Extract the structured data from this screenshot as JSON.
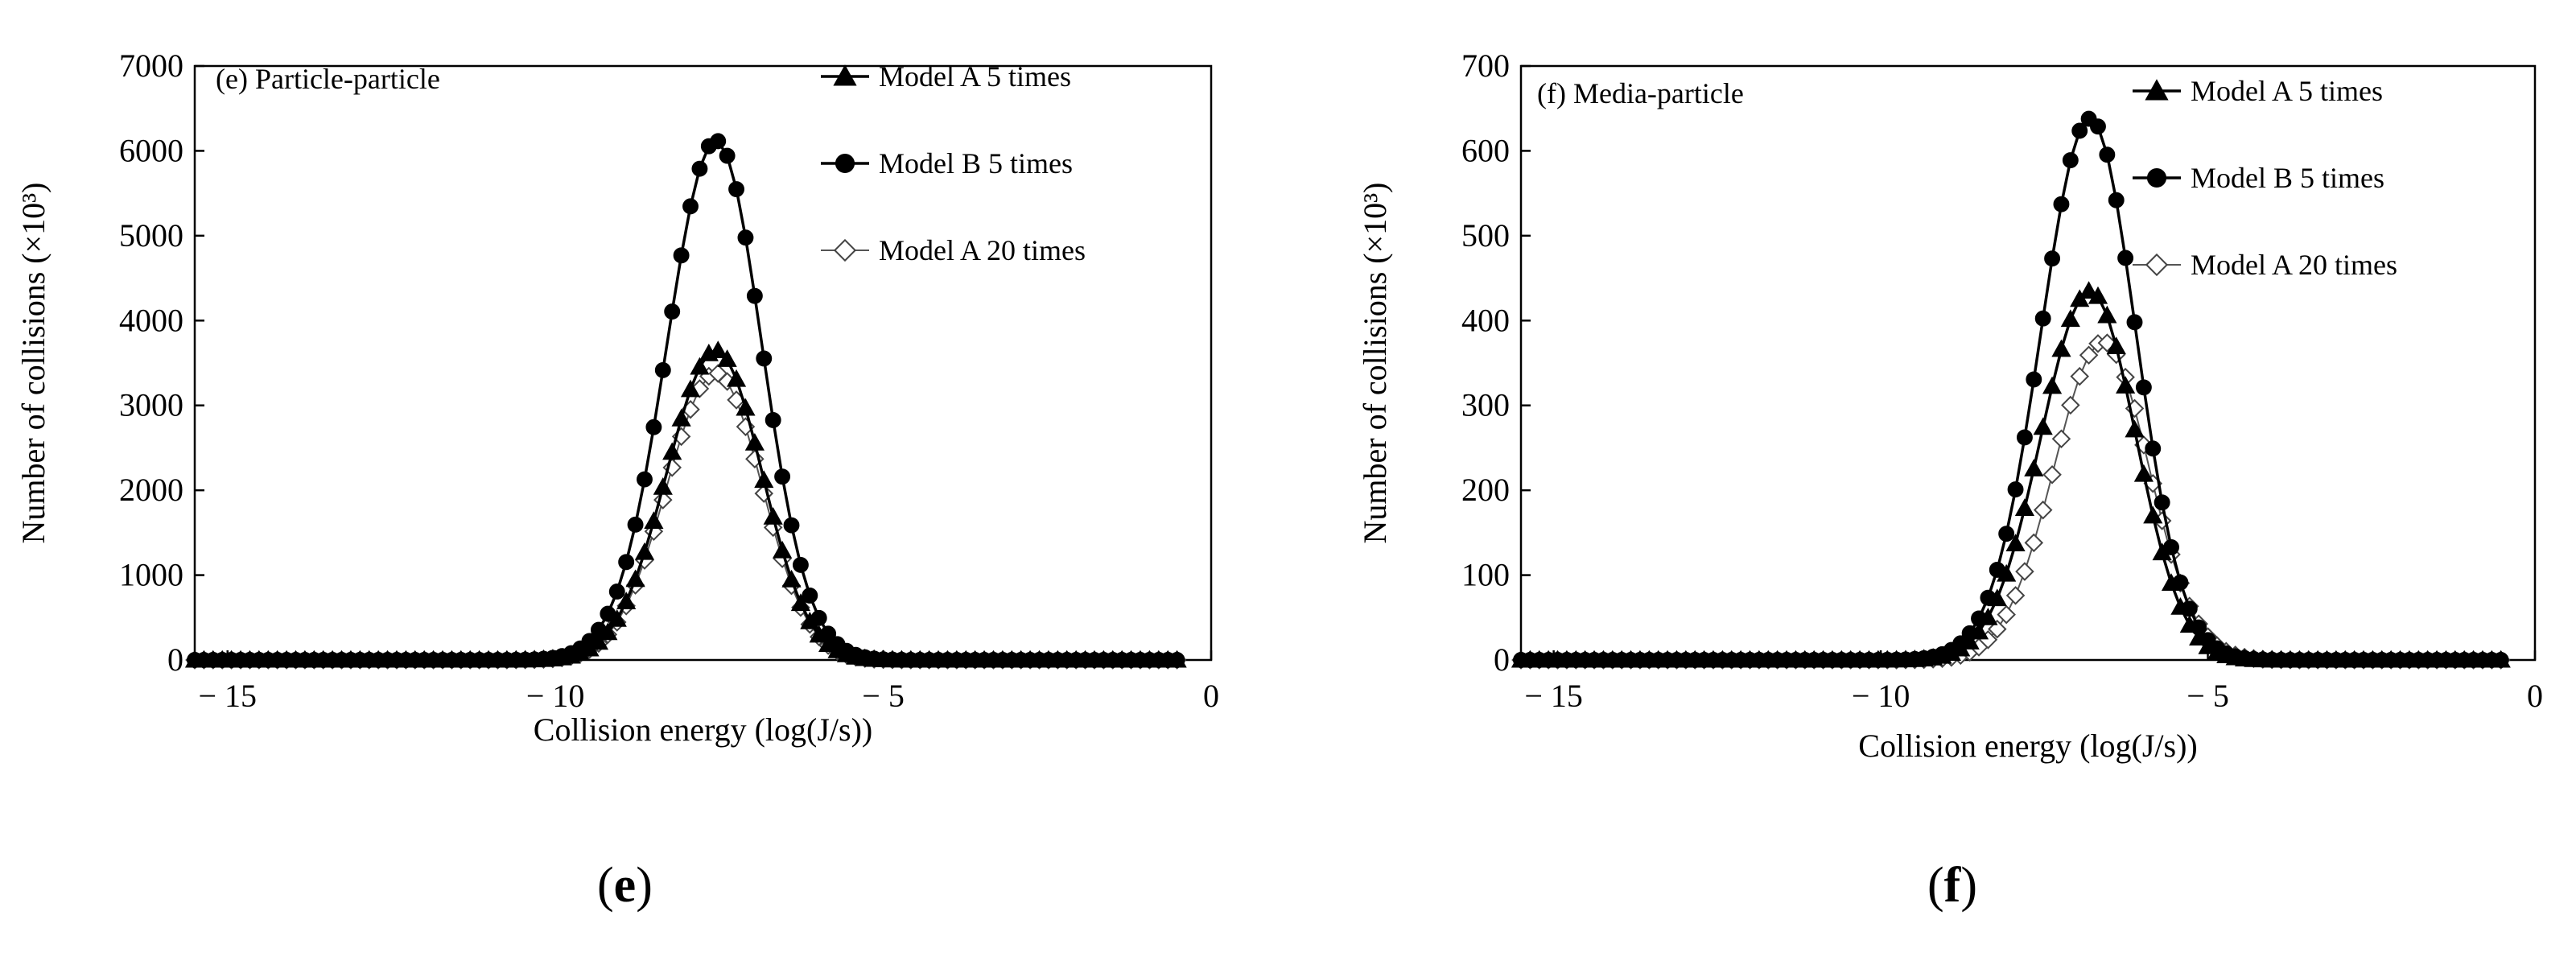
{
  "chart_data": [
    {
      "type": "line",
      "panel_label": "(e) Particle-particle",
      "caption": {
        "open": "(",
        "letter": "e",
        "close": ")"
      },
      "xlabel": "Collision energy (log(J/s))",
      "ylabel": "Number of collisions (×10³)",
      "xlim": [
        -15.5,
        0
      ],
      "ylim": [
        0,
        7000
      ],
      "xticks": [
        -15,
        -10,
        -5,
        0
      ],
      "xtick_labels": [
        "− 15",
        "− 10",
        "− 5",
        "0"
      ],
      "yticks": [
        0,
        1000,
        2000,
        3000,
        4000,
        5000,
        6000,
        7000
      ],
      "ytick_labels": [
        "0",
        "1000",
        "2000",
        "3000",
        "4000",
        "5000",
        "6000",
        "7000"
      ],
      "grid": false,
      "legend_position": "top-right",
      "series": [
        {
          "name": "Model A  5 times",
          "marker": "triangle",
          "color": "#000000",
          "peak_x": -7.55,
          "peak_y": 3650,
          "sigma_left": 0.75,
          "sigma_right": 0.7,
          "x_start": -15.5,
          "x_end": -0.5,
          "x_step": 0.14
        },
        {
          "name": "Model B  5 times",
          "marker": "circle",
          "color": "#000000",
          "peak_x": -7.55,
          "peak_y": 6120,
          "sigma_left": 0.75,
          "sigma_right": 0.7,
          "x_start": -15.5,
          "x_end": -0.5,
          "x_step": 0.14
        },
        {
          "name": "Model A  20 times",
          "marker": "diamond",
          "color": "#000000",
          "peak_x": -7.55,
          "peak_y": 3380,
          "sigma_left": 0.75,
          "sigma_right": 0.7,
          "x_start": -15.5,
          "x_end": -0.5,
          "x_step": 0.14
        }
      ]
    },
    {
      "type": "line",
      "panel_label": "(f) Media-particle",
      "caption": {
        "open": "(",
        "letter": "f",
        "close": ")"
      },
      "xlabel": "Collision energy (log(J/s))",
      "ylabel": "Number of collisions (×10³)",
      "xlim": [
        -15.5,
        0
      ],
      "ylim": [
        0,
        700
      ],
      "xticks": [
        -15,
        -10,
        -5,
        0
      ],
      "xtick_labels": [
        "− 15",
        "− 10",
        "− 5",
        "0"
      ],
      "yticks": [
        0,
        100,
        200,
        300,
        400,
        500,
        600,
        700
      ],
      "ytick_labels": [
        "0",
        "100",
        "200",
        "300",
        "400",
        "500",
        "600",
        "700"
      ],
      "grid": false,
      "legend_position": "top-right",
      "series": [
        {
          "name": "Model A  5 times",
          "marker": "triangle",
          "color": "#000000",
          "peak_x": -6.8,
          "peak_y": 435,
          "sigma_left": 0.75,
          "sigma_right": 0.7,
          "x_start": -15.5,
          "x_end": -0.5,
          "x_step": 0.14
        },
        {
          "name": "Model B  5 times",
          "marker": "circle",
          "color": "#000000",
          "peak_x": -6.8,
          "peak_y": 638,
          "sigma_left": 0.75,
          "sigma_right": 0.7,
          "x_start": -15.5,
          "x_end": -0.5,
          "x_step": 0.14
        },
        {
          "name": "Model A  20 times",
          "marker": "diamond",
          "color": "#000000",
          "peak_x": -6.6,
          "peak_y": 375,
          "sigma_left": 0.75,
          "sigma_right": 0.7,
          "x_start": -15.5,
          "x_end": -0.5,
          "x_step": 0.14
        }
      ]
    }
  ]
}
